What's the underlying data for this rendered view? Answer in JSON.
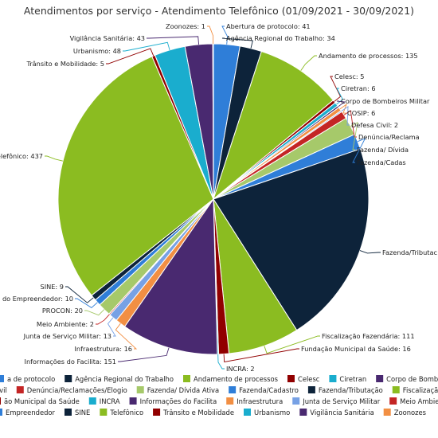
{
  "chart_data": {
    "type": "pie",
    "title": "Atendimentos por serviço - Atendimento Telefônico (01/09/2021 - 30/09/2021)",
    "slices": [
      {
        "name": "Abertura de protocolo",
        "label": "Abertura de protocolo: 41",
        "value": 41,
        "color": "#2f7ed8"
      },
      {
        "name": "Agência Regional do Trabalho",
        "label": "Agência Regional do Trabalho: 34",
        "value": 34,
        "color": "#0d233a"
      },
      {
        "name": "Andamento de processos",
        "label": "Andamento de processos: 135",
        "value": 135,
        "color": "#8bbc21"
      },
      {
        "name": "Celesc",
        "label": "Celesc: 5",
        "value": 5,
        "color": "#910000"
      },
      {
        "name": "Ciretran",
        "label": "Ciretran: 6",
        "value": 6,
        "color": "#1aadce"
      },
      {
        "name": "Corpo de Bombeiros Militar",
        "label": "Corpo de Bombeiros Militar",
        "value": 3,
        "color": "#492970"
      },
      {
        "name": "COSIP",
        "label": "COSIP: 6",
        "value": 6,
        "color": "#f28f43"
      },
      {
        "name": "Defesa Civil",
        "label": "Defesa Civil: 2",
        "value": 2,
        "color": "#77a1e5"
      },
      {
        "name": "Denúncia/Reclamações/Elogio",
        "label": "Denúncia/Reclama",
        "value": 12,
        "color": "#c42525"
      },
      {
        "name": "Fazenda/ Dívida Ativa",
        "label": "Fazenda/ Dívida",
        "value": 28,
        "color": "#a6c96a"
      },
      {
        "name": "Fazenda/Cadastro",
        "label": "Fazenda/Cadas",
        "value": 24,
        "color": "#2f7ed8"
      },
      {
        "name": "Fazenda/Tributação",
        "label": "Fazenda/Tributac",
        "value": 318,
        "color": "#0d233a"
      },
      {
        "name": "Fiscalização Fazendária",
        "label": "Fiscalização Fazendária: 111",
        "value": 111,
        "color": "#8bbc21"
      },
      {
        "name": "Fundação Municipal da Saúde",
        "label": "Fundação Municipal da Saúde: 16",
        "value": 16,
        "color": "#910000"
      },
      {
        "name": "INCRA",
        "label": "INCRA: 2",
        "value": 2,
        "color": "#1aadce"
      },
      {
        "name": "Informações do Facilita",
        "label": "Informações do Facilita: 151",
        "value": 151,
        "color": "#492970"
      },
      {
        "name": "Infraestrutura",
        "label": "Infraestrutura: 16",
        "value": 16,
        "color": "#f28f43"
      },
      {
        "name": "Junta de Serviço Militar",
        "label": "Junta de Serviço Militar: 13",
        "value": 13,
        "color": "#77a1e5"
      },
      {
        "name": "Meio Ambiente",
        "label": "Meio Ambiente: 2",
        "value": 2,
        "color": "#c42525"
      },
      {
        "name": "PROCON",
        "label": "PROCON: 20",
        "value": 20,
        "color": "#a6c96a"
      },
      {
        "name": "Sala do Empreendedor",
        "label": "a do Empreendedor: 10",
        "value": 10,
        "color": "#2f7ed8"
      },
      {
        "name": "SINE",
        "label": "SINE: 9",
        "value": 9,
        "color": "#0d233a"
      },
      {
        "name": "Telefônico",
        "label": "elefônico: 437",
        "value": 437,
        "color": "#8bbc21"
      },
      {
        "name": "Trânsito e Mobilidade",
        "label": "Trânsito e Mobilidade: 5",
        "value": 5,
        "color": "#910000"
      },
      {
        "name": "Urbanismo",
        "label": "Urbanismo: 48",
        "value": 48,
        "color": "#1aadce"
      },
      {
        "name": "Vigilância Sanitária",
        "label": "Vigilância Sanitária: 43",
        "value": 43,
        "color": "#492970"
      },
      {
        "name": "Zoonozes",
        "label": "Zoonozes: 1",
        "value": 1,
        "color": "#f28f43"
      }
    ],
    "legend": {
      "placement": "bottom",
      "rows": [
        [
          {
            "text": "a de protocolo",
            "color": "#2f7ed8"
          },
          {
            "text": "Agência Regional do Trabalho",
            "color": "#0d233a"
          },
          {
            "text": "Andamento de processos",
            "color": "#8bbc21"
          },
          {
            "text": "Celesc",
            "color": "#910000"
          },
          {
            "text": "Ciretran",
            "color": "#1aadce"
          },
          {
            "text": "Corpo de Bombeiros Militar",
            "color": "#492970"
          }
        ],
        [
          {
            "text": "Civil",
            "color": "#77a1e5"
          },
          {
            "text": "Denúncia/Reclamações/Elogio",
            "color": "#c42525"
          },
          {
            "text": "Fazenda/ Dívida Ativa",
            "color": "#a6c96a"
          },
          {
            "text": "Fazenda/Cadastro",
            "color": "#2f7ed8"
          },
          {
            "text": "Fazenda/Tributação",
            "color": "#0d233a"
          },
          {
            "text": "Fiscalização Fazer",
            "color": "#8bbc21"
          }
        ],
        [
          {
            "text": "ão Municipal da Saúde",
            "color": "#910000"
          },
          {
            "text": "INCRA",
            "color": "#1aadce"
          },
          {
            "text": "Informações do Facilita",
            "color": "#492970"
          },
          {
            "text": "Infraestrutura",
            "color": "#f28f43"
          },
          {
            "text": "Junta de Serviço Militar",
            "color": "#77a1e5"
          },
          {
            "text": "Meio Ambiente",
            "color": "#c42525"
          },
          {
            "text": "PRO",
            "color": "#a6c96a"
          }
        ],
        [
          {
            "text": "Empreendedor",
            "color": "#2f7ed8"
          },
          {
            "text": "SINE",
            "color": "#0d233a"
          },
          {
            "text": "Telefônico",
            "color": "#8bbc21"
          },
          {
            "text": "Trânsito e Mobilidade",
            "color": "#910000"
          },
          {
            "text": "Urbanismo",
            "color": "#1aadce"
          },
          {
            "text": "Vigilância Sanitária",
            "color": "#492970"
          },
          {
            "text": "Zoonozes",
            "color": "#f28f43"
          }
        ]
      ]
    }
  }
}
